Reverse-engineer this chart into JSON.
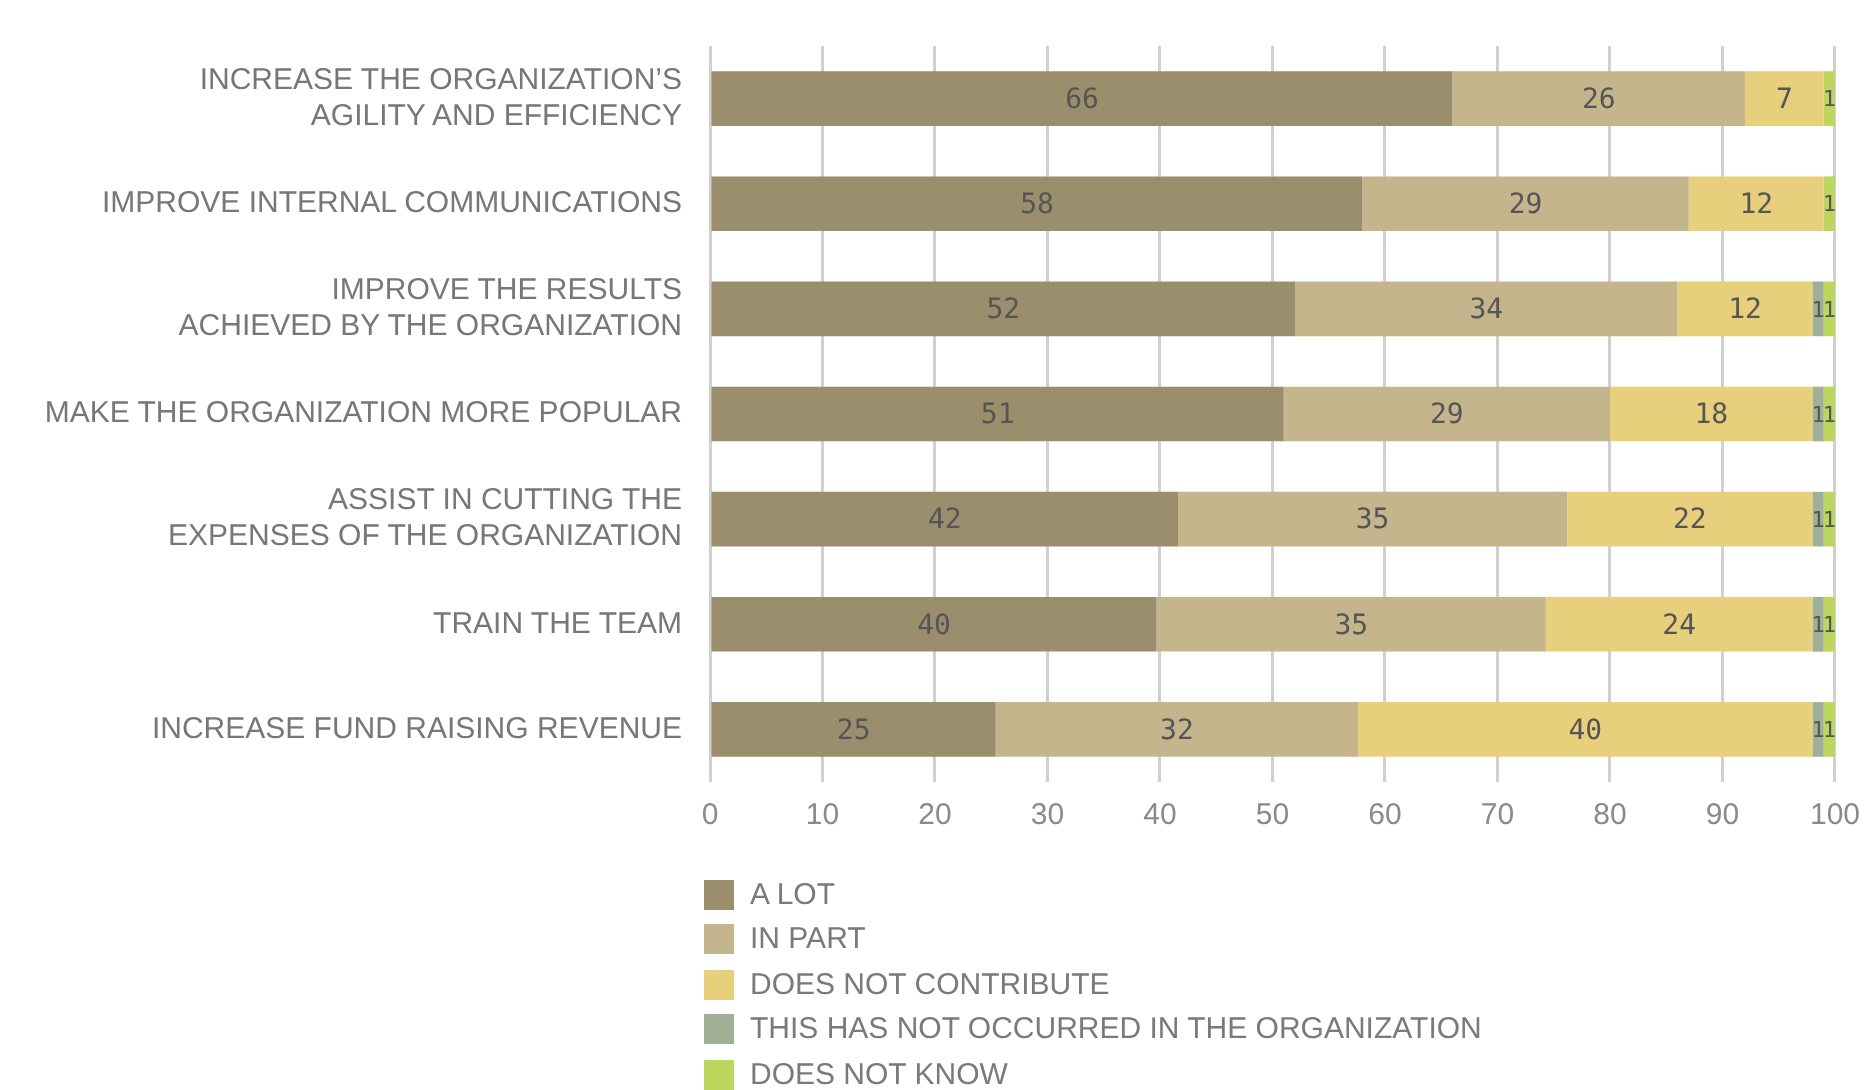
{
  "chart_data": {
    "type": "bar",
    "orientation": "horizontal",
    "stacked": true,
    "categories": [
      "INCREASE THE ORGANIZATION’S AGILITY AND EFFICIENCY",
      "IMPROVE INTERNAL COMMUNICATIONS",
      "IMPROVE THE RESULTS ACHIEVED BY THE ORGANIZATION",
      "MAKE THE ORGANIZATION MORE POPULAR",
      "ASSIST IN CUTTING THE EXPENSES OF THE ORGANIZATION",
      "TRAIN THE TEAM",
      "INCREASE FUND RAISING REVENUE"
    ],
    "series": [
      {
        "name": "A LOT",
        "color": "#9b8e6c",
        "values": [
          66,
          58,
          52,
          51,
          41.6,
          39.7,
          25.4
        ],
        "value_labels": [
          "66",
          "58",
          "52",
          "51",
          "42",
          "40",
          "25"
        ]
      },
      {
        "name": "IN PART",
        "color": "#c4b58d",
        "values": [
          26,
          29,
          34,
          29,
          34.6,
          34.6,
          32.2
        ],
        "value_labels": [
          "26",
          "29",
          "34",
          "29",
          "35",
          "35",
          "32"
        ]
      },
      {
        "name": "DOES NOT CONTRIBUTE",
        "color": "#e8cf7c",
        "values": [
          7,
          12,
          12,
          18,
          21.8,
          23.7,
          40.4
        ],
        "value_labels": [
          "7",
          "12",
          "12",
          "18",
          "22",
          "24",
          "40"
        ]
      },
      {
        "name": "THIS HAS NOT OCCURRED IN THE ORGANIZATION",
        "color": "#9fb095",
        "values": [
          null,
          null,
          1,
          1,
          1,
          1,
          1
        ],
        "value_labels": [
          null,
          null,
          "1",
          "1",
          "1",
          "1",
          "1"
        ]
      },
      {
        "name": "DOES NOT KNOW",
        "color": "#bcd65e",
        "values": [
          1,
          1,
          1,
          1,
          1,
          1,
          1
        ],
        "value_labels": [
          "1",
          "1",
          "1",
          "1",
          "1",
          "1",
          "1"
        ]
      }
    ],
    "xlim": [
      0,
      100
    ],
    "xticks": [
      0,
      10,
      20,
      30,
      40,
      50,
      60,
      70,
      80,
      90,
      100
    ],
    "grid": "x",
    "legend": "bottom"
  }
}
